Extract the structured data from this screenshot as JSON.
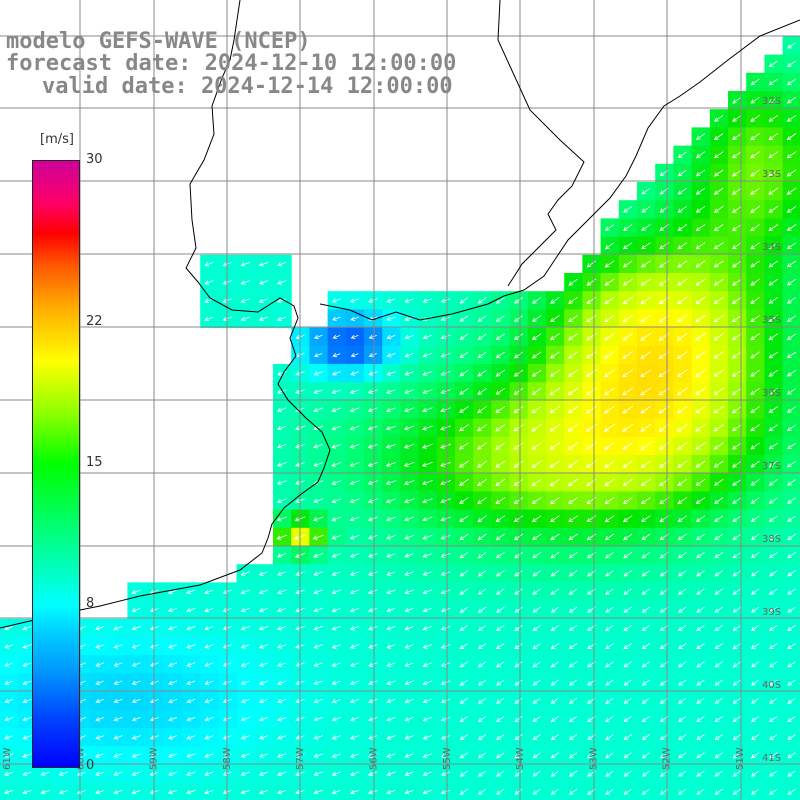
{
  "title": {
    "model": "modelo GEFS-WAVE (NCEP)",
    "forecast": "forecast date: 2024-12-10 12:00:00",
    "valid": "valid date: 2024-12-14 12:00:00"
  },
  "colorbar": {
    "units": "[m/s]",
    "ticks": [
      {
        "label": "30",
        "value": 30
      },
      {
        "label": "22",
        "value": 22
      },
      {
        "label": "15",
        "value": 15
      },
      {
        "label": "8",
        "value": 8
      },
      {
        "label": "0",
        "value": 0
      }
    ],
    "min": 0,
    "max": 30
  },
  "lat_labels": [
    "32S",
    "33S",
    "34S",
    "35S",
    "36S",
    "37S",
    "38S",
    "39S",
    "40S",
    "41S"
  ],
  "lon_labels": [
    "61W",
    "60W",
    "59W",
    "58W",
    "57W",
    "56W",
    "55W",
    "54W",
    "53W",
    "52W",
    "51W"
  ],
  "colors": {
    "land": "#ffffff",
    "grid": "#888888",
    "coast": "#000000",
    "arrow": "#ffffff"
  }
}
